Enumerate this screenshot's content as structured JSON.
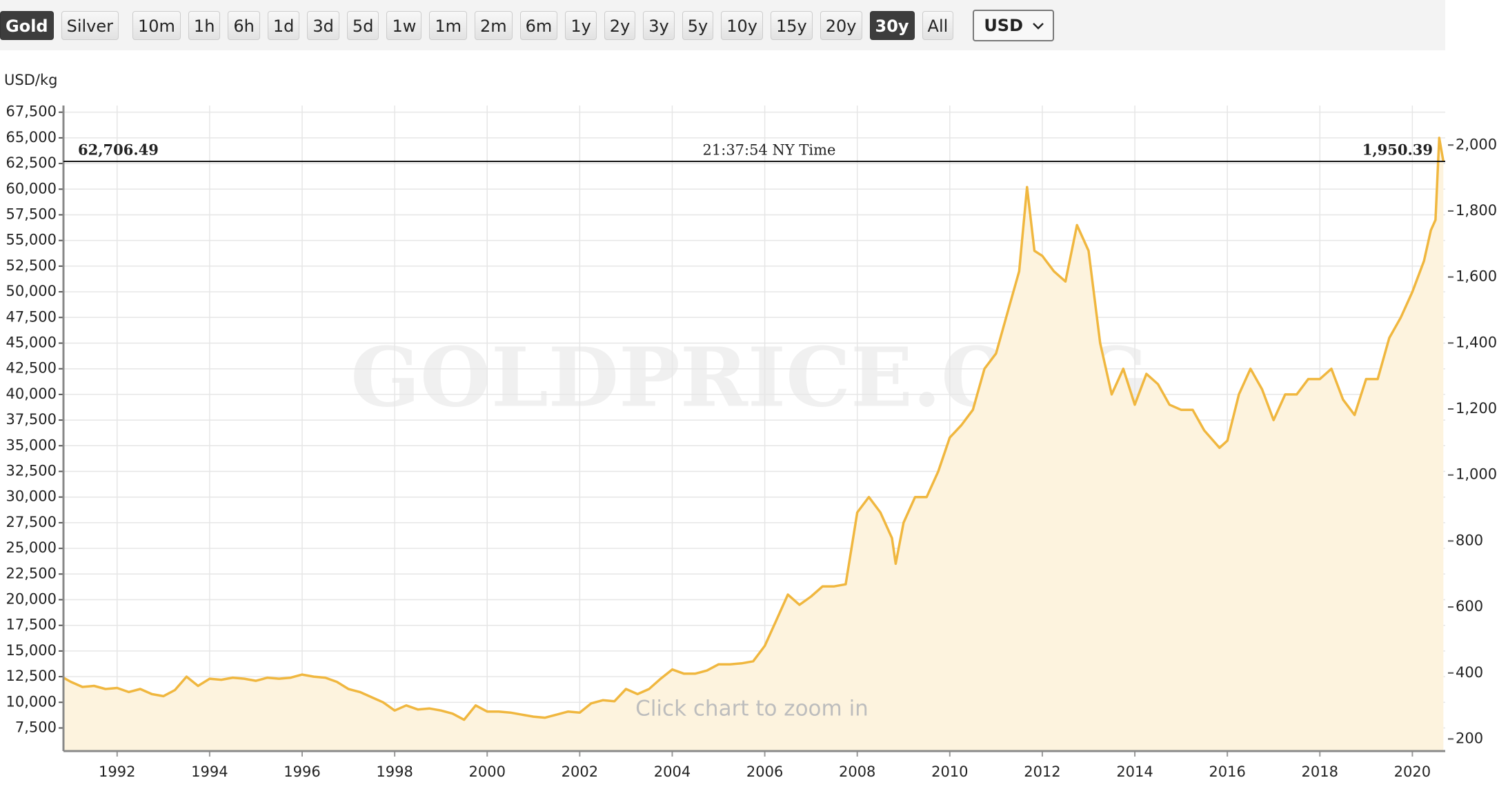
{
  "toolbar": {
    "buttons": [
      {
        "label": "Gold",
        "active": true
      },
      {
        "label": "Silver",
        "active": false
      },
      {
        "label": "10m",
        "active": false
      },
      {
        "label": "1h",
        "active": false
      },
      {
        "label": "6h",
        "active": false
      },
      {
        "label": "1d",
        "active": false
      },
      {
        "label": "3d",
        "active": false
      },
      {
        "label": "5d",
        "active": false
      },
      {
        "label": "1w",
        "active": false
      },
      {
        "label": "1m",
        "active": false
      },
      {
        "label": "2m",
        "active": false
      },
      {
        "label": "6m",
        "active": false
      },
      {
        "label": "1y",
        "active": false
      },
      {
        "label": "2y",
        "active": false
      },
      {
        "label": "3y",
        "active": false
      },
      {
        "label": "5y",
        "active": false
      },
      {
        "label": "10y",
        "active": false
      },
      {
        "label": "15y",
        "active": false
      },
      {
        "label": "20y",
        "active": false
      },
      {
        "label": "30y",
        "active": true
      },
      {
        "label": "All",
        "active": false
      }
    ],
    "currency": "USD"
  },
  "chart_data": {
    "type": "area",
    "y_label": "USD/kg",
    "watermark": "GOLDPRICE.ORG",
    "hint": "Click chart to zoom in",
    "time_label": "21:37:54 NY Time",
    "ref_line": {
      "value": 62706.49,
      "label": "62,706.49"
    },
    "ref_oz": {
      "value": 1950.39,
      "label": "1,950.39"
    },
    "grid": true,
    "line_color": "#f0b73f",
    "fill_color": "#fdf3de",
    "xlim": [
      1990.84,
      2020.71
    ],
    "xticks": [
      1992,
      1994,
      1996,
      1998,
      2000,
      2002,
      2004,
      2006,
      2008,
      2010,
      2012,
      2014,
      2016,
      2018,
      2020
    ],
    "ylim": [
      5250,
      68150
    ],
    "yticks": [
      {
        "value": 7500,
        "label": "7,500"
      },
      {
        "value": 10000,
        "label": "10,000"
      },
      {
        "value": 12500,
        "label": "12,500"
      },
      {
        "value": 15000,
        "label": "15,000"
      },
      {
        "value": 17500,
        "label": "17,500"
      },
      {
        "value": 20000,
        "label": "20,000"
      },
      {
        "value": 22500,
        "label": "22,500"
      },
      {
        "value": 25000,
        "label": "25,000"
      },
      {
        "value": 27500,
        "label": "27,500"
      },
      {
        "value": 30000,
        "label": "30,000"
      },
      {
        "value": 32500,
        "label": "32,500"
      },
      {
        "value": 35000,
        "label": "35,000"
      },
      {
        "value": 37500,
        "label": "37,500"
      },
      {
        "value": 40000,
        "label": "40,000"
      },
      {
        "value": 42500,
        "label": "42,500"
      },
      {
        "value": 45000,
        "label": "45,000"
      },
      {
        "value": 47500,
        "label": "47,500"
      },
      {
        "value": 50000,
        "label": "50,000"
      },
      {
        "value": 52500,
        "label": "52,500"
      },
      {
        "value": 55000,
        "label": "55,000"
      },
      {
        "value": 57500,
        "label": "57,500"
      },
      {
        "value": 60000,
        "label": "60,000"
      },
      {
        "value": 62500,
        "label": "62,500"
      },
      {
        "value": 65000,
        "label": "65,000"
      },
      {
        "value": 67500,
        "label": "67,500"
      }
    ],
    "y2lim": [
      163.3,
      2119.7
    ],
    "y2ticks": [
      200,
      400,
      600,
      800,
      {
        "value": 1000,
        "label": "1,000"
      },
      {
        "value": 1200,
        "label": "1,200"
      },
      {
        "value": 1400,
        "label": "1,400"
      },
      {
        "value": 1600,
        "label": "1,600"
      },
      {
        "value": 1800,
        "label": "1,800"
      },
      {
        "value": 2000,
        "label": "2,000"
      }
    ],
    "x": [
      1990.84,
      1991.0,
      1991.25,
      1991.5,
      1991.75,
      1992.0,
      1992.25,
      1992.5,
      1992.75,
      1993.0,
      1993.25,
      1993.5,
      1993.75,
      1994.0,
      1994.25,
      1994.5,
      1994.75,
      1995.0,
      1995.25,
      1995.5,
      1995.75,
      1996.0,
      1996.25,
      1996.5,
      1996.75,
      1997.0,
      1997.25,
      1997.5,
      1997.75,
      1998.0,
      1998.25,
      1998.5,
      1998.75,
      1999.0,
      1999.25,
      1999.5,
      1999.75,
      2000.0,
      2000.25,
      2000.5,
      2000.75,
      2001.0,
      2001.25,
      2001.5,
      2001.75,
      2002.0,
      2002.25,
      2002.5,
      2002.75,
      2003.0,
      2003.25,
      2003.5,
      2003.75,
      2004.0,
      2004.25,
      2004.5,
      2004.75,
      2005.0,
      2005.25,
      2005.5,
      2005.75,
      2006.0,
      2006.25,
      2006.5,
      2006.75,
      2007.0,
      2007.25,
      2007.5,
      2007.75,
      2008.0,
      2008.25,
      2008.5,
      2008.75,
      2008.83,
      2009.0,
      2009.25,
      2009.5,
      2009.75,
      2010.0,
      2010.25,
      2010.5,
      2010.75,
      2011.0,
      2011.25,
      2011.5,
      2011.67,
      2011.83,
      2012.0,
      2012.25,
      2012.5,
      2012.75,
      2013.0,
      2013.25,
      2013.5,
      2013.75,
      2014.0,
      2014.25,
      2014.5,
      2014.75,
      2015.0,
      2015.25,
      2015.5,
      2015.83,
      2016.0,
      2016.25,
      2016.5,
      2016.75,
      2017.0,
      2017.25,
      2017.5,
      2017.75,
      2018.0,
      2018.25,
      2018.5,
      2018.75,
      2019.0,
      2019.25,
      2019.5,
      2019.75,
      2020.0,
      2020.25,
      2020.4,
      2020.5,
      2020.58,
      2020.67
    ],
    "series": [
      {
        "name": "Gold",
        "values": [
          12400,
          12000,
          11500,
          11600,
          11300,
          11400,
          11000,
          11300,
          10800,
          10600,
          11200,
          12500,
          11600,
          12300,
          12200,
          12400,
          12300,
          12100,
          12400,
          12300,
          12400,
          12700,
          12500,
          12400,
          12000,
          11300,
          11000,
          10500,
          10000,
          9200,
          9700,
          9300,
          9400,
          9200,
          8900,
          8300,
          9700,
          9100,
          9100,
          9000,
          8800,
          8600,
          8500,
          8800,
          9100,
          9000,
          9900,
          10200,
          10100,
          11300,
          10800,
          11300,
          12300,
          13200,
          12800,
          12800,
          13100,
          13700,
          13700,
          13800,
          14000,
          15500,
          18000,
          20500,
          19500,
          20300,
          21300,
          21300,
          21500,
          28500,
          30000,
          28500,
          26000,
          23500,
          27500,
          30000,
          30000,
          32500,
          35800,
          37000,
          38500,
          42500,
          44000,
          48000,
          52000,
          60200,
          54000,
          53500,
          52000,
          51000,
          56500,
          54000,
          45000,
          40000,
          42500,
          39000,
          42000,
          41000,
          39000,
          38500,
          38500,
          36500,
          34800,
          35500,
          40000,
          42500,
          40500,
          37500,
          40000,
          40000,
          41500,
          41500,
          42500,
          39500,
          38000,
          41500,
          41500,
          45500,
          47500,
          50000,
          53000,
          56000,
          57000,
          65000,
          62700
        ]
      }
    ]
  }
}
